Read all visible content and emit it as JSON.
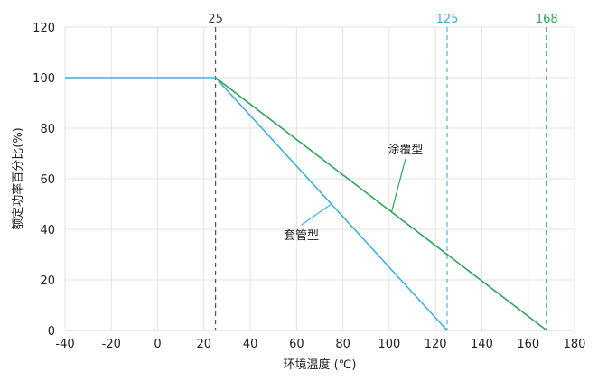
{
  "chart_data": {
    "type": "line",
    "title": "",
    "xlabel": "环境温度 (℃)",
    "ylabel": "额定功率百分比(%)",
    "xlim": [
      -40,
      180
    ],
    "ylim": [
      0,
      120
    ],
    "x_ticks": [
      -40,
      -20,
      0,
      20,
      40,
      60,
      80,
      100,
      120,
      140,
      160,
      180
    ],
    "y_ticks": [
      0,
      20,
      40,
      60,
      80,
      100,
      120
    ],
    "grid": true,
    "series": [
      {
        "name": "套管型",
        "color": "#3fb1d9",
        "x": [
          -40,
          25,
          125
        ],
        "y": [
          100,
          100,
          0
        ]
      },
      {
        "name": "涂覆型",
        "color": "#2ea45a",
        "x": [
          25,
          168
        ],
        "y": [
          100,
          0
        ]
      }
    ],
    "reference_lines": [
      {
        "x": 25,
        "label": "25",
        "color": "#444444"
      },
      {
        "x": 125,
        "label": "125",
        "color": "#3fb1d9"
      },
      {
        "x": 168,
        "label": "168",
        "color": "#2ea45a"
      }
    ],
    "annotations": [
      {
        "text": "涂覆型",
        "series": 1,
        "point_x": 101,
        "label_x": 107,
        "label_y": 70
      },
      {
        "text": "套管型",
        "series": 0,
        "point_x": 75,
        "label_x": 62,
        "label_y": 36
      }
    ]
  }
}
